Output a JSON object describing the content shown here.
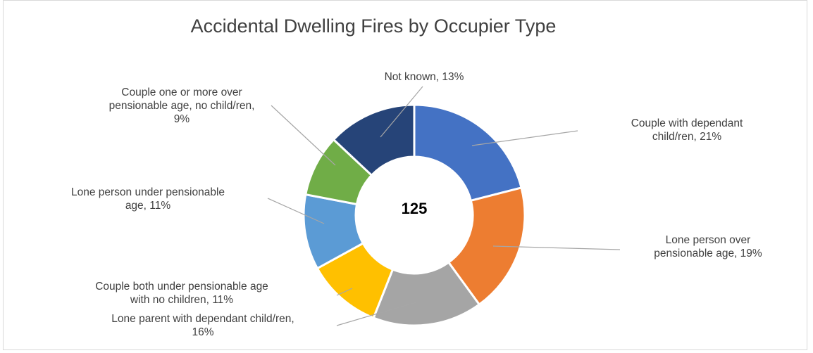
{
  "chart_data": {
    "type": "pie",
    "title": "Accidental Dwelling Fires by Occupier Type",
    "center_label": "125",
    "slices": [
      {
        "label": "Couple with dependant child/ren",
        "value": 21,
        "pct_text": "21%",
        "color": "#4472C4"
      },
      {
        "label": "Lone person over pensionable age",
        "value": 19,
        "pct_text": "19%",
        "color": "#ED7D31"
      },
      {
        "label": "Lone parent with dependant child/ren",
        "value": 16,
        "pct_text": "16%",
        "color": "#A5A5A5"
      },
      {
        "label": "Couple both under pensionable age with no children",
        "value": 11,
        "pct_text": "11%",
        "color": "#FFC000"
      },
      {
        "label": "Lone person under pensionable age",
        "value": 11,
        "pct_text": "11%",
        "color": "#5B9BD5"
      },
      {
        "label": "Couple one or more over pensionable age, no child/ren",
        "value": 9,
        "pct_text": "9%",
        "color": "#70AD47"
      },
      {
        "label": "Not known",
        "value": 13,
        "pct_text": "13%",
        "color": "#264478"
      }
    ],
    "data_labels": [
      [
        "Couple with dependant",
        "child/ren, 21%"
      ],
      [
        "Lone person over",
        "pensionable age, 19%"
      ],
      [
        "Lone parent with dependant child/ren,",
        "16%"
      ],
      [
        "Couple both under pensionable age",
        "with no children, 11%"
      ],
      [
        "Lone person under pensionable",
        "age, 11%"
      ],
      [
        "Couple one or more over",
        "pensionable age, no child/ren,",
        "9%"
      ],
      [
        "Not known, 13%"
      ]
    ]
  }
}
